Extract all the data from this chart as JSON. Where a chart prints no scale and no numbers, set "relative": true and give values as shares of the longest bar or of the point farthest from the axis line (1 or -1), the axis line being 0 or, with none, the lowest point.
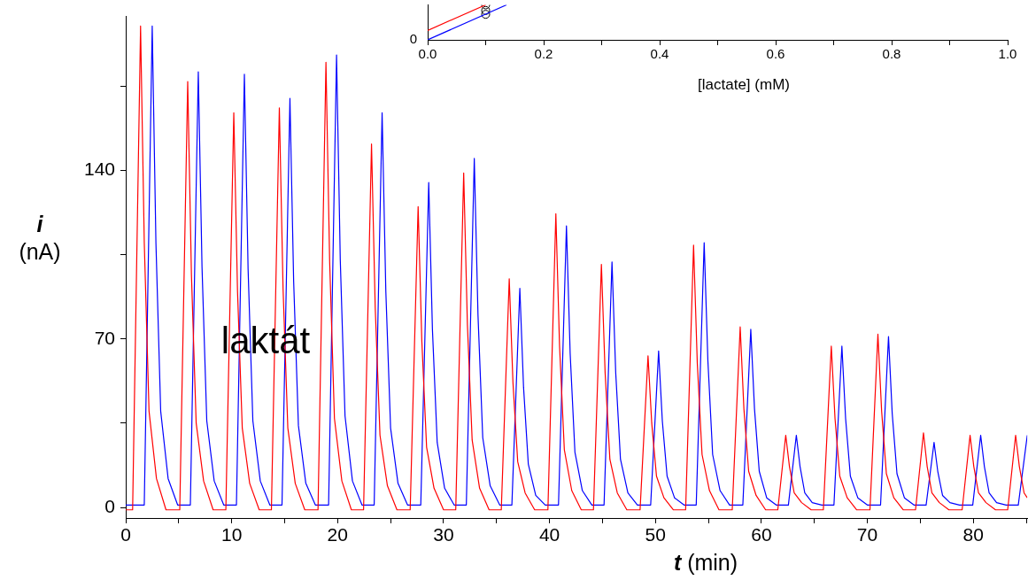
{
  "chart_data": [
    {
      "type": "line",
      "xlabel": "t (min)",
      "ylabel": "i (nA)",
      "annotations": [
        "laktát"
      ],
      "xlim": [
        0,
        85.1
      ],
      "ylim": [
        -4.4,
        204
      ],
      "xticks": [
        0,
        {
          "value": 5,
          "label": null
        },
        10,
        {
          "value": 15,
          "label": null
        },
        20,
        {
          "value": 25,
          "label": null
        },
        30,
        {
          "value": 35,
          "label": null
        },
        40,
        {
          "value": 45,
          "label": null
        },
        50,
        {
          "value": 55,
          "label": null
        },
        60,
        {
          "value": 65,
          "label": null
        },
        70,
        {
          "value": 75,
          "label": null
        },
        80,
        {
          "value": 85,
          "label": null
        }
      ],
      "yticks": [
        0,
        {
          "value": 35,
          "label": null
        },
        70,
        {
          "value": 105,
          "label": null
        },
        140,
        {
          "value": 175,
          "label": null
        }
      ],
      "grid": false,
      "legend": false,
      "marker": "none",
      "line_style": "solid",
      "series": [
        {
          "color": "#ff0000",
          "x": [
            0,
            0.65,
            1.4,
            1.75,
            2.2,
            2.9,
            3.8,
            5.1,
            5.85,
            6.2,
            6.65,
            7.35,
            8.25,
            9.45,
            10.2,
            10.55,
            11,
            11.7,
            12.6,
            13.75,
            14.5,
            14.85,
            15.3,
            16,
            16.9,
            18.15,
            18.9,
            19.25,
            19.7,
            20.4,
            21.3,
            22.45,
            23.2,
            23.55,
            24,
            24.7,
            25.6,
            26.85,
            27.6,
            27.95,
            28.4,
            29.1,
            30,
            31.15,
            31.9,
            32.25,
            32.7,
            33.4,
            34.3,
            35.45,
            36.2,
            36.55,
            37,
            37.7,
            38.6,
            39.85,
            40.6,
            40.95,
            41.4,
            42.1,
            43,
            44.15,
            44.9,
            45.25,
            45.7,
            46.4,
            47.3,
            48.55,
            49.3,
            49.65,
            50.1,
            50.8,
            51.7,
            52.85,
            53.6,
            53.95,
            54.4,
            55.1,
            56,
            57.25,
            58,
            58.35,
            58.8,
            59.5,
            60.4,
            61.55,
            62.3,
            62.65,
            63.1,
            63.8,
            64.7,
            65.85,
            66.6,
            66.95,
            67.4,
            68.1,
            69,
            70.25,
            71,
            71.35,
            71.8,
            72.5,
            73.4,
            74.55,
            75.3,
            75.65,
            76.1,
            76.8,
            77.7,
            78.95,
            79.7,
            80.05,
            80.5,
            81.2,
            82.1,
            83.25,
            84,
            84.35,
            84.8,
            85.1
          ],
          "values": [
            -1,
            -1,
            200,
            110,
            40,
            12,
            -1,
            -1,
            177,
            97,
            35,
            11,
            -1,
            -1,
            164,
            90,
            33,
            10,
            -1,
            -1,
            166,
            91,
            33,
            10,
            -1,
            -1,
            185,
            102,
            37,
            11,
            -1,
            -1,
            151,
            83,
            30,
            9,
            -1,
            -1,
            125,
            69,
            25,
            8,
            -1,
            -1,
            139,
            76,
            28,
            8,
            -1,
            -1,
            95,
            52,
            19,
            6,
            -1,
            -1,
            122,
            67,
            24,
            7,
            -1,
            -1,
            101,
            56,
            20,
            6,
            -1,
            -1,
            63,
            35,
            13,
            4,
            -1,
            -1,
            109,
            60,
            22,
            7,
            -1,
            -1,
            75,
            41,
            15,
            5,
            -1,
            -1,
            30,
            17,
            6,
            2,
            -1,
            -1,
            67,
            37,
            13,
            4,
            -1,
            -1,
            72,
            40,
            14,
            4,
            -1,
            -1,
            31,
            17,
            6,
            2,
            -1,
            -1,
            30,
            17,
            6,
            2,
            -1,
            -1,
            30,
            17,
            6,
            4
          ]
        },
        {
          "color": "#0000ff",
          "x": [
            0,
            1.75,
            2.5,
            2.85,
            3.3,
            4,
            4.9,
            6.1,
            6.85,
            7.2,
            7.65,
            8.35,
            9.25,
            10.45,
            11.2,
            11.55,
            12,
            12.7,
            13.6,
            14.75,
            15.5,
            15.85,
            16.3,
            17,
            17.9,
            19.15,
            19.9,
            20.25,
            20.7,
            21.4,
            22.3,
            23.45,
            24.2,
            24.55,
            25,
            25.7,
            26.6,
            27.85,
            28.6,
            28.95,
            29.4,
            30.1,
            31,
            32.15,
            32.9,
            33.25,
            33.7,
            34.4,
            35.3,
            36.45,
            37.2,
            37.55,
            38,
            38.7,
            39.6,
            40.85,
            41.6,
            41.95,
            42.4,
            43.1,
            44,
            45.15,
            45.9,
            46.25,
            46.7,
            47.4,
            48.3,
            49.55,
            50.3,
            50.65,
            51.1,
            51.8,
            52.7,
            53.85,
            54.6,
            54.95,
            55.4,
            56.1,
            57,
            58.25,
            59,
            59.35,
            59.8,
            60.5,
            61.4,
            62.55,
            63.3,
            63.65,
            64.1,
            64.8,
            65.7,
            66.85,
            67.6,
            67.95,
            68.4,
            69.1,
            70,
            71.25,
            72,
            72.35,
            72.8,
            73.5,
            74.4,
            75.55,
            76.3,
            76.65,
            77.1,
            77.8,
            78.7,
            79.95,
            80.7,
            81.05,
            81.5,
            82.2,
            83.1,
            84.25,
            85.1
          ],
          "values": [
            1,
            1,
            200,
            110,
            40,
            12,
            1,
            1,
            181,
            100,
            36,
            11,
            1,
            1,
            180,
            99,
            36,
            11,
            1,
            1,
            170,
            94,
            34,
            10,
            1,
            1,
            188,
            103,
            38,
            11,
            1,
            1,
            164,
            90,
            33,
            10,
            1,
            1,
            135,
            74,
            27,
            8,
            1,
            1,
            145,
            80,
            29,
            9,
            1,
            1,
            91,
            50,
            18,
            5,
            1,
            1,
            117,
            64,
            23,
            7,
            1,
            1,
            102,
            56,
            20,
            6,
            1,
            1,
            65,
            36,
            13,
            4,
            1,
            1,
            110,
            61,
            22,
            7,
            1,
            1,
            74,
            41,
            15,
            4,
            1,
            1,
            30,
            17,
            6,
            2,
            1,
            1,
            67,
            37,
            13,
            4,
            1,
            1,
            71,
            39,
            14,
            4,
            1,
            1,
            27,
            15,
            5,
            2,
            1,
            1,
            30,
            17,
            6,
            2,
            1,
            1,
            30
          ]
        }
      ]
    },
    {
      "type": "line",
      "xlabel": "[lactate] (mM)",
      "relative": true,
      "xlim": [
        0,
        1.0
      ],
      "xticks": [
        {
          "value": 0,
          "label": "0.0"
        },
        {
          "value": 0.1,
          "label": null
        },
        0.2,
        {
          "value": 0.3,
          "label": null
        },
        0.4,
        {
          "value": 0.5,
          "label": null
        },
        0.6,
        {
          "value": 0.7,
          "label": null
        },
        0.8,
        {
          "value": 0.9,
          "label": null
        },
        {
          "value": 1.0,
          "label": "1.0"
        }
      ],
      "annotations": [
        {
          "text": "0",
          "x": 0,
          "y": 0
        }
      ],
      "grid": false,
      "legend": false,
      "marker": "none",
      "series": [
        {
          "color": "#ff0000",
          "x": [
            0,
            0.1
          ],
          "values": [
            0.27,
            1.0
          ]
        },
        {
          "color": "#0000ff",
          "x": [
            0,
            0.136
          ],
          "values": [
            0,
            1.0
          ]
        },
        {
          "type": "scatter",
          "marker": "circle",
          "color": "#000000",
          "x": [
            0.1,
            0.1,
            0.1
          ],
          "values": [
            1.0,
            0.84,
            0.73
          ]
        }
      ]
    }
  ]
}
